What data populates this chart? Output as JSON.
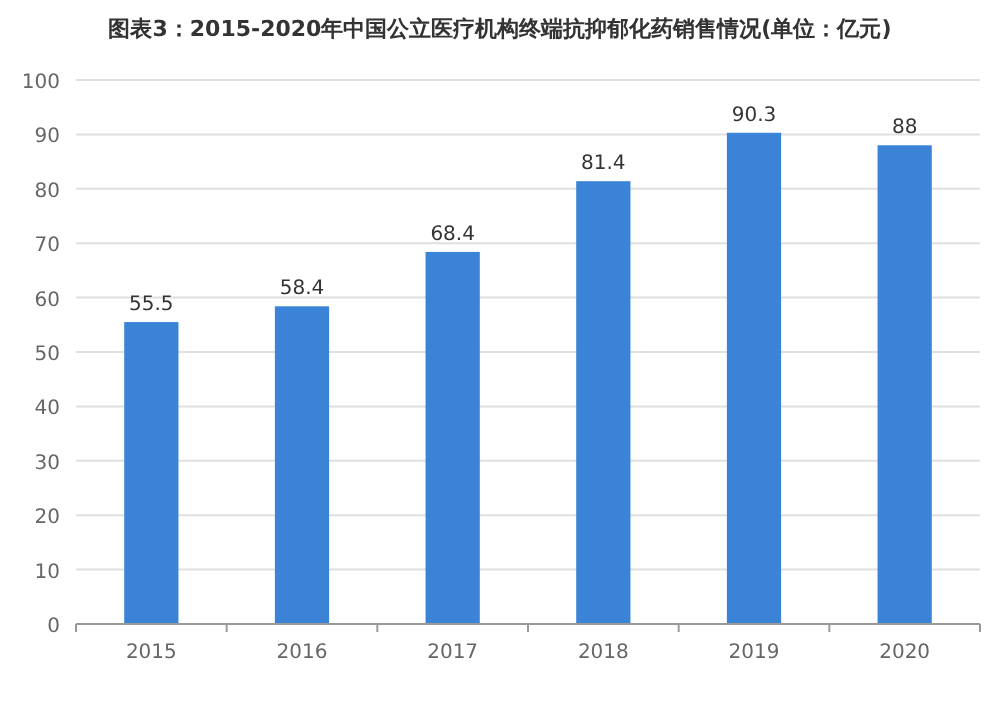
{
  "chart_data": {
    "type": "bar",
    "title": "图表3：2015-2020年中国公立医疗机构终端抗抑郁化药销售情况(单位：亿元)",
    "categories": [
      "2015",
      "2016",
      "2017",
      "2018",
      "2019",
      "2020"
    ],
    "values": [
      55.5,
      58.4,
      68.4,
      81.4,
      90.3,
      88
    ],
    "color": "#3b83d6",
    "ylim": [
      0,
      100
    ],
    "yticks": [
      0,
      10,
      20,
      30,
      40,
      50,
      60,
      70,
      80,
      90,
      100
    ],
    "grid": "y",
    "data_labels": true
  }
}
